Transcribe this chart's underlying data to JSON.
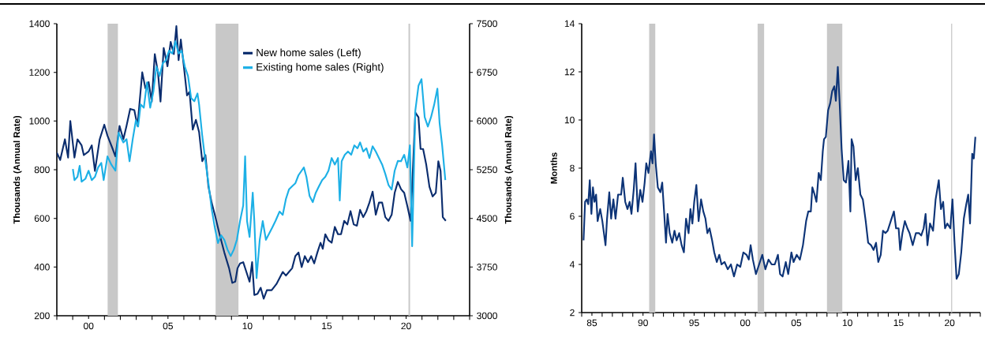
{
  "chart_data": [
    {
      "type": "line",
      "xlim": [
        1998,
        2024
      ],
      "ylim": [
        200,
        1400
      ],
      "yticks": [
        200,
        400,
        600,
        800,
        1000,
        1200,
        1400
      ],
      "y2lim": [
        3000,
        7500
      ],
      "y2ticks": [
        3000,
        3750,
        4500,
        5250,
        6000,
        6750,
        7500
      ],
      "xticks": [
        {
          "value": 1998,
          "label": null
        },
        {
          "value": 1999,
          "label": null
        },
        {
          "value": 2000,
          "label": "00"
        },
        {
          "value": 2001,
          "label": null
        },
        {
          "value": 2002,
          "label": null
        },
        {
          "value": 2003,
          "label": null
        },
        {
          "value": 2004,
          "label": null
        },
        {
          "value": 2005,
          "label": "05"
        },
        {
          "value": 2006,
          "label": null
        },
        {
          "value": 2007,
          "label": null
        },
        {
          "value": 2008,
          "label": null
        },
        {
          "value": 2009,
          "label": null
        },
        {
          "value": 2010,
          "label": "10"
        },
        {
          "value": 2011,
          "label": null
        },
        {
          "value": 2012,
          "label": null
        },
        {
          "value": 2013,
          "label": null
        },
        {
          "value": 2014,
          "label": null
        },
        {
          "value": 2015,
          "label": "15"
        },
        {
          "value": 2016,
          "label": null
        },
        {
          "value": 2017,
          "label": null
        },
        {
          "value": 2018,
          "label": null
        },
        {
          "value": 2019,
          "label": null
        },
        {
          "value": 2020,
          "label": "20"
        },
        {
          "value": 2021,
          "label": null
        },
        {
          "value": 2022,
          "label": null
        },
        {
          "value": 2023,
          "label": null
        },
        {
          "value": 2024,
          "label": null
        }
      ],
      "ylabel": "Thousands (Annual Rate)",
      "y2label": "Thousands (Annual Rate)",
      "legend": "top",
      "bands": [
        {
          "axis": "x",
          "from": 2001.2,
          "to": 2001.85,
          "color": "#c8c8c8"
        },
        {
          "axis": "x",
          "from": 2008.0,
          "to": 2009.45,
          "color": "#c8c8c8"
        },
        {
          "axis": "x",
          "from": 2020.15,
          "to": 2020.25,
          "color": "#c8c8c8"
        }
      ],
      "series": [
        {
          "name": "New home sales (Left)",
          "color": "#0b2d6e",
          "x": [
            1998.0,
            1998.21,
            1998.51,
            1998.71,
            1998.85,
            1999.11,
            1999.3,
            1999.56,
            1999.7,
            2000.0,
            2000.2,
            2000.4,
            2000.7,
            2000.99,
            2001.19,
            2001.49,
            2001.69,
            2001.95,
            2002.19,
            2002.39,
            2002.62,
            2002.88,
            2003.08,
            2003.38,
            2003.58,
            2003.78,
            2003.98,
            2004.17,
            2004.37,
            2004.53,
            2004.73,
            2004.97,
            2005.17,
            2005.37,
            2005.53,
            2005.67,
            2005.81,
            2006.0,
            2006.2,
            2006.36,
            2006.56,
            2006.76,
            2006.96,
            2007.16,
            2007.36,
            2007.55,
            2007.75,
            2007.95,
            2008.25,
            2008.55,
            2008.85,
            2009.05,
            2009.24,
            2009.38,
            2009.54,
            2009.74,
            2009.94,
            2010.14,
            2010.3,
            2010.44,
            2010.64,
            2010.84,
            2011.03,
            2011.23,
            2011.53,
            2011.83,
            2012.03,
            2012.23,
            2012.43,
            2012.62,
            2012.82,
            2013.02,
            2013.22,
            2013.42,
            2013.62,
            2013.82,
            2014.02,
            2014.21,
            2014.41,
            2014.61,
            2014.75,
            2014.91,
            2015.11,
            2015.31,
            2015.51,
            2015.71,
            2015.9,
            2016.1,
            2016.3,
            2016.5,
            2016.7,
            2016.9,
            2017.1,
            2017.3,
            2017.5,
            2017.69,
            2017.89,
            2018.09,
            2018.29,
            2018.49,
            2018.69,
            2018.89,
            2019.09,
            2019.28,
            2019.48,
            2019.68,
            2019.88,
            2020.08,
            2020.28,
            2020.38,
            2020.58,
            2020.78,
            2020.91,
            2021.07,
            2021.27,
            2021.47,
            2021.67,
            2021.87,
            2022.03,
            2022.17,
            2022.31,
            2022.5
          ],
          "values": [
            870,
            840,
            925,
            850,
            1000,
            850,
            925,
            900,
            860,
            875,
            900,
            795,
            925,
            985,
            940,
            890,
            855,
            980,
            925,
            980,
            1050,
            1045,
            980,
            1200,
            1135,
            1160,
            1080,
            1275,
            1200,
            1080,
            1300,
            1225,
            1325,
            1275,
            1390,
            1250,
            1335,
            1225,
            1105,
            1120,
            965,
            1005,
            955,
            835,
            860,
            730,
            665,
            615,
            535,
            460,
            395,
            335,
            340,
            395,
            415,
            420,
            380,
            340,
            420,
            285,
            290,
            315,
            270,
            305,
            305,
            330,
            355,
            380,
            365,
            380,
            395,
            445,
            460,
            400,
            445,
            420,
            445,
            415,
            460,
            500,
            475,
            535,
            510,
            500,
            565,
            535,
            535,
            590,
            575,
            630,
            575,
            570,
            635,
            605,
            630,
            665,
            710,
            615,
            665,
            665,
            605,
            590,
            615,
            705,
            750,
            720,
            705,
            650,
            590,
            730,
            1035,
            1015,
            885,
            885,
            820,
            730,
            690,
            705,
            835,
            795,
            605,
            590
          ]
        },
        {
          "name": "Existing home sales (Right)",
          "color": "#1db0e6",
          "axis": "y2",
          "x": [
            1999.01,
            1999.11,
            1999.3,
            1999.44,
            1999.56,
            1999.8,
            2000.0,
            2000.2,
            2000.4,
            2000.6,
            2000.8,
            2000.95,
            2001.19,
            2001.43,
            2001.69,
            2001.89,
            2002.19,
            2002.39,
            2002.58,
            2002.78,
            2002.98,
            2003.12,
            2003.28,
            2003.48,
            2003.68,
            2003.88,
            2004.08,
            2004.27,
            2004.47,
            2004.67,
            2004.87,
            2005.07,
            2005.27,
            2005.47,
            2005.67,
            2005.86,
            2006.06,
            2006.26,
            2006.46,
            2006.66,
            2006.86,
            2006.96,
            2007.16,
            2007.36,
            2007.55,
            2007.75,
            2007.95,
            2008.15,
            2008.35,
            2008.55,
            2008.75,
            2008.95,
            2009.15,
            2009.34,
            2009.54,
            2009.74,
            2009.86,
            2009.98,
            2010.14,
            2010.34,
            2010.44,
            2010.58,
            2010.78,
            2010.97,
            2011.17,
            2011.37,
            2011.57,
            2011.77,
            2012.03,
            2012.23,
            2012.43,
            2012.62,
            2012.82,
            2013.02,
            2013.22,
            2013.56,
            2013.72,
            2013.92,
            2014.12,
            2014.31,
            2014.51,
            2014.71,
            2014.91,
            2015.11,
            2015.31,
            2015.51,
            2015.71,
            2015.82,
            2015.94,
            2016.14,
            2016.34,
            2016.54,
            2016.74,
            2016.94,
            2017.1,
            2017.3,
            2017.5,
            2017.69,
            2017.89,
            2018.09,
            2018.29,
            2018.49,
            2018.69,
            2018.89,
            2019.09,
            2019.28,
            2019.48,
            2019.68,
            2019.88,
            2020.08,
            2020.24,
            2020.38,
            2020.58,
            2020.78,
            2020.97,
            2021.17,
            2021.37,
            2021.57,
            2021.77,
            2021.97,
            2022.11,
            2022.27,
            2022.47
          ],
          "values": [
            5260,
            5090,
            5140,
            5310,
            5065,
            5110,
            5235,
            5090,
            5140,
            5285,
            5355,
            5090,
            5455,
            5330,
            5235,
            5820,
            5670,
            5720,
            5380,
            5720,
            6010,
            5915,
            6255,
            6205,
            6595,
            6205,
            6450,
            6840,
            6695,
            6890,
            6935,
            7085,
            7040,
            7230,
            7040,
            7085,
            6840,
            6695,
            6355,
            6305,
            6425,
            6255,
            5770,
            5380,
            5040,
            4650,
            4360,
            4120,
            4240,
            4170,
            4020,
            3920,
            4020,
            4170,
            4460,
            4700,
            5455,
            4460,
            4215,
            4895,
            4460,
            3580,
            4170,
            4460,
            4170,
            4265,
            4360,
            4460,
            4605,
            4555,
            4800,
            4945,
            4995,
            5040,
            5165,
            5285,
            5140,
            4845,
            4750,
            4895,
            4995,
            5090,
            5140,
            5235,
            5430,
            5330,
            5430,
            4775,
            5380,
            5480,
            5530,
            5480,
            5625,
            5580,
            5670,
            5530,
            5580,
            5430,
            5610,
            5530,
            5430,
            5330,
            5185,
            5015,
            4945,
            5235,
            5385,
            5380,
            5480,
            5285,
            5625,
            4070,
            6160,
            6545,
            6645,
            6060,
            5915,
            6060,
            6255,
            6500,
            5965,
            5625,
            5090
          ]
        }
      ]
    },
    {
      "type": "line",
      "xlim": [
        1984,
        2023
      ],
      "ylim": [
        2,
        14
      ],
      "yticks": [
        2,
        4,
        6,
        8,
        10,
        12,
        14
      ],
      "xticks": [
        {
          "value": 1984,
          "label": null
        },
        {
          "value": 1985,
          "label": "85"
        },
        {
          "value": 1986,
          "label": null
        },
        {
          "value": 1987,
          "label": null
        },
        {
          "value": 1988,
          "label": null
        },
        {
          "value": 1989,
          "label": null
        },
        {
          "value": 1990,
          "label": "90"
        },
        {
          "value": 1991,
          "label": null
        },
        {
          "value": 1992,
          "label": null
        },
        {
          "value": 1993,
          "label": null
        },
        {
          "value": 1994,
          "label": null
        },
        {
          "value": 1995,
          "label": "95"
        },
        {
          "value": 1996,
          "label": null
        },
        {
          "value": 1997,
          "label": null
        },
        {
          "value": 1998,
          "label": null
        },
        {
          "value": 1999,
          "label": null
        },
        {
          "value": 2000,
          "label": "00"
        },
        {
          "value": 2001,
          "label": null
        },
        {
          "value": 2002,
          "label": null
        },
        {
          "value": 2003,
          "label": null
        },
        {
          "value": 2004,
          "label": null
        },
        {
          "value": 2005,
          "label": "05"
        },
        {
          "value": 2006,
          "label": null
        },
        {
          "value": 2007,
          "label": null
        },
        {
          "value": 2008,
          "label": null
        },
        {
          "value": 2009,
          "label": null
        },
        {
          "value": 2010,
          "label": "10"
        },
        {
          "value": 2011,
          "label": null
        },
        {
          "value": 2012,
          "label": null
        },
        {
          "value": 2013,
          "label": null
        },
        {
          "value": 2014,
          "label": null
        },
        {
          "value": 2015,
          "label": "15"
        },
        {
          "value": 2016,
          "label": null
        },
        {
          "value": 2017,
          "label": null
        },
        {
          "value": 2018,
          "label": null
        },
        {
          "value": 2019,
          "label": null
        },
        {
          "value": 2020,
          "label": "20"
        },
        {
          "value": 2021,
          "label": null
        },
        {
          "value": 2022,
          "label": null
        },
        {
          "value": 2023,
          "label": null
        }
      ],
      "ylabel": "Months",
      "bands": [
        {
          "axis": "x",
          "from": 1990.6,
          "to": 1991.2,
          "color": "#c8c8c8"
        },
        {
          "axis": "x",
          "from": 2001.2,
          "to": 2001.85,
          "color": "#c8c8c8"
        },
        {
          "axis": "x",
          "from": 2008.0,
          "to": 2009.5,
          "color": "#c8c8c8"
        },
        {
          "axis": "x",
          "from": 2020.15,
          "to": 2020.25,
          "color": "#c8c8c8"
        }
      ],
      "series": [
        {
          "color": "#0d3477",
          "x": [
            1984.18,
            1984.33,
            1984.49,
            1984.64,
            1984.79,
            1984.95,
            1985.1,
            1985.25,
            1985.41,
            1985.56,
            1985.81,
            1986.02,
            1986.33,
            1986.48,
            1986.7,
            1986.88,
            1987.1,
            1987.31,
            1987.56,
            1987.86,
            1988.02,
            1988.26,
            1988.48,
            1988.69,
            1988.87,
            1989.09,
            1989.27,
            1989.49,
            1989.73,
            1989.95,
            1990.16,
            1990.32,
            1990.53,
            1990.78,
            1990.93,
            1991.08,
            1991.24,
            1991.45,
            1991.7,
            1991.88,
            1992.06,
            1992.25,
            1992.4,
            1992.61,
            1992.86,
            1993.08,
            1993.29,
            1993.54,
            1993.78,
            1994.0,
            1994.21,
            1994.46,
            1994.64,
            1994.83,
            1995.01,
            1995.22,
            1995.44,
            1995.68,
            1995.9,
            1996.11,
            1996.3,
            1996.51,
            1996.76,
            1996.97,
            1997.22,
            1997.46,
            1997.68,
            1997.98,
            1998.29,
            1998.6,
            1998.9,
            1999.21,
            1999.52,
            1999.82,
            2000.13,
            2000.35,
            2000.53,
            2000.75,
            2001.05,
            2001.36,
            2001.67,
            2001.97,
            2002.28,
            2002.59,
            2002.89,
            2003.2,
            2003.41,
            2003.66,
            2003.97,
            2004.21,
            2004.52,
            2004.73,
            2005.04,
            2005.35,
            2005.65,
            2005.96,
            2006.17,
            2006.42,
            2006.57,
            2006.79,
            2006.97,
            2007.19,
            2007.4,
            2007.59,
            2007.71,
            2007.89,
            2008.11,
            2008.32,
            2008.51,
            2008.72,
            2008.87,
            2009.06,
            2009.24,
            2009.43,
            2009.64,
            2009.86,
            2010.1,
            2010.29,
            2010.41,
            2010.59,
            2010.81,
            2011.02,
            2011.27,
            2011.51,
            2011.79,
            2012.03,
            2012.31,
            2012.56,
            2012.8,
            2013.02,
            2013.26,
            2013.48,
            2013.72,
            2013.94,
            2014.24,
            2014.55,
            2014.76,
            2015.01,
            2015.16,
            2015.38,
            2015.62,
            2015.87,
            2016.08,
            2016.39,
            2016.7,
            2017.0,
            2017.22,
            2017.46,
            2017.65,
            2017.83,
            2018.08,
            2018.38,
            2018.63,
            2018.94,
            2019.15,
            2019.37,
            2019.55,
            2019.77,
            2020.07,
            2020.28,
            2020.47,
            2020.68,
            2020.9,
            2021.14,
            2021.39,
            2021.63,
            2021.82,
            2022.0,
            2022.21,
            2022.37,
            2022.52
          ],
          "values": [
            5.0,
            6.6,
            6.7,
            6.5,
            7.5,
            6.1,
            7.2,
            6.6,
            6.9,
            5.8,
            6.3,
            5.8,
            4.8,
            5.9,
            7.0,
            5.9,
            6.7,
            5.9,
            6.9,
            6.9,
            7.6,
            6.6,
            6.3,
            6.6,
            6.1,
            7.1,
            8.2,
            6.2,
            7.1,
            6.6,
            7.4,
            8.2,
            7.8,
            8.7,
            8.2,
            9.4,
            8.2,
            7.2,
            7.0,
            7.4,
            6.2,
            4.9,
            6.1,
            5.3,
            4.9,
            5.4,
            5.0,
            5.3,
            4.8,
            4.5,
            5.9,
            5.3,
            6.3,
            5.7,
            6.6,
            7.3,
            5.8,
            6.7,
            6.2,
            5.9,
            5.3,
            5.5,
            5.0,
            4.5,
            4.1,
            4.4,
            4.0,
            4.1,
            3.8,
            4.0,
            3.5,
            4.0,
            3.9,
            4.5,
            4.4,
            4.2,
            4.8,
            4.2,
            3.6,
            4.0,
            4.4,
            3.8,
            4.2,
            4.0,
            4.0,
            4.4,
            3.6,
            3.5,
            4.1,
            3.6,
            4.5,
            4.1,
            4.4,
            4.2,
            4.8,
            5.8,
            6.2,
            6.2,
            7.2,
            6.9,
            6.6,
            7.8,
            7.5,
            8.7,
            9.2,
            9.3,
            10.4,
            10.7,
            11.2,
            11.4,
            10.8,
            12.2,
            10.7,
            8.8,
            7.5,
            7.4,
            8.3,
            6.2,
            9.2,
            8.9,
            7.5,
            8.0,
            6.9,
            6.7,
            5.8,
            4.9,
            4.8,
            4.6,
            4.9,
            4.1,
            4.4,
            5.4,
            5.3,
            5.4,
            5.8,
            6.2,
            5.5,
            5.5,
            4.6,
            5.3,
            5.8,
            5.5,
            5.3,
            4.8,
            5.3,
            5.3,
            5.2,
            5.5,
            6.1,
            4.8,
            5.7,
            5.4,
            6.7,
            7.5,
            6.3,
            6.6,
            5.5,
            5.7,
            5.5,
            6.7,
            5.0,
            3.4,
            3.6,
            4.5,
            5.9,
            6.5,
            6.9,
            5.7,
            8.6,
            8.4,
            9.3
          ]
        }
      ]
    }
  ]
}
